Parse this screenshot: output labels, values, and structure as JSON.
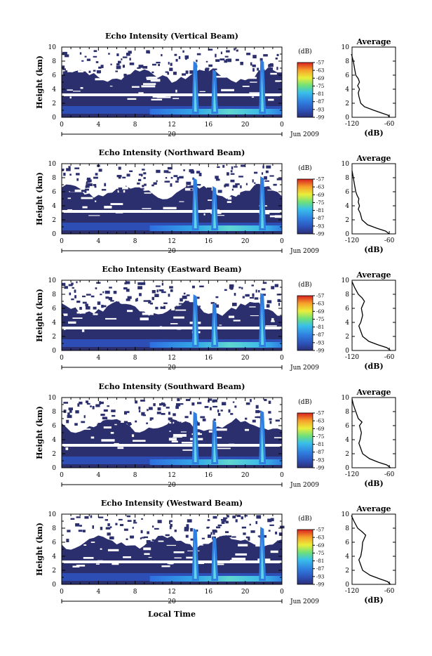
{
  "chart_data": [
    {
      "type": "heatmap",
      "title": "Echo Intensity (Vertical Beam)",
      "ylabel": "Height (km)",
      "xlabel": "",
      "x_ticks": [
        "0",
        "4",
        "8",
        "12",
        "16",
        "20",
        "0"
      ],
      "y_ticks": [
        "0",
        "2",
        "4",
        "6",
        "8",
        "10"
      ],
      "xlim": [
        0,
        24
      ],
      "ylim": [
        0,
        10
      ],
      "date_label": "20",
      "date_suffix": "Jun 2009",
      "colorbar": {
        "unit": "(dB)",
        "ticks": [
          "-57",
          "-63",
          "-69",
          "-75",
          "-81",
          "-87",
          "-93",
          "-99"
        ],
        "range": [
          -99,
          -57
        ]
      },
      "profile": {
        "title": "Average",
        "xlabel": "(dB)",
        "x_ticks": [
          "-120",
          "-60"
        ],
        "y_ticks": [
          "0",
          "2",
          "4",
          "6",
          "8",
          "10"
        ],
        "xlim": [
          -120,
          -50
        ],
        "ylim": [
          0,
          10
        ],
        "points": [
          [
            -60,
            0
          ],
          [
            -62,
            0.3
          ],
          [
            -72,
            0.6
          ],
          [
            -85,
            1.0
          ],
          [
            -100,
            1.5
          ],
          [
            -106,
            2.0
          ],
          [
            -109,
            3.0
          ],
          [
            -110,
            3.5
          ],
          [
            -108,
            4.0
          ],
          [
            -111,
            4.5
          ],
          [
            -108,
            5.0
          ],
          [
            -110,
            5.5
          ],
          [
            -114,
            6.0
          ],
          [
            -116,
            7.0
          ],
          [
            -118,
            8.0
          ],
          [
            -121,
            9.0
          ]
        ]
      }
    },
    {
      "type": "heatmap",
      "title": "Echo Intensity (Northward Beam)",
      "ylabel": "Height (km)",
      "xlabel": "",
      "x_ticks": [
        "0",
        "4",
        "8",
        "12",
        "16",
        "20",
        "0"
      ],
      "y_ticks": [
        "0",
        "2",
        "4",
        "6",
        "8",
        "10"
      ],
      "xlim": [
        0,
        24
      ],
      "ylim": [
        0,
        10
      ],
      "date_label": "20",
      "date_suffix": "Jun 2009",
      "colorbar": {
        "unit": "(dB)",
        "ticks": [
          "-57",
          "-63",
          "-69",
          "-75",
          "-81",
          "-87",
          "-93",
          "-99"
        ],
        "range": [
          -99,
          -57
        ]
      },
      "profile": {
        "title": "Average",
        "xlabel": "(dB)",
        "x_ticks": [
          "-120",
          "-60"
        ],
        "y_ticks": [
          "0",
          "2",
          "4",
          "6",
          "8",
          "10"
        ],
        "xlim": [
          -120,
          -50
        ],
        "ylim": [
          0,
          10
        ],
        "points": [
          [
            -60,
            0
          ],
          [
            -66,
            0.4
          ],
          [
            -80,
            0.8
          ],
          [
            -95,
            1.3
          ],
          [
            -104,
            2.0
          ],
          [
            -107,
            3.0
          ],
          [
            -110,
            3.5
          ],
          [
            -108,
            4.0
          ],
          [
            -110,
            4.5
          ],
          [
            -109,
            5.0
          ],
          [
            -112,
            5.5
          ],
          [
            -114,
            6.0
          ],
          [
            -116,
            7.0
          ],
          [
            -118,
            8.0
          ],
          [
            -120,
            9.0
          ]
        ]
      }
    },
    {
      "type": "heatmap",
      "title": "Echo Intensity (Eastward Beam)",
      "ylabel": "Height (km)",
      "xlabel": "",
      "x_ticks": [
        "0",
        "4",
        "8",
        "12",
        "16",
        "20",
        "0"
      ],
      "y_ticks": [
        "0",
        "2",
        "4",
        "6",
        "8",
        "10"
      ],
      "xlim": [
        0,
        24
      ],
      "ylim": [
        0,
        10
      ],
      "date_label": "20",
      "date_suffix": "Jun 2009",
      "colorbar": {
        "unit": "(dB)",
        "ticks": [
          "-57",
          "-63",
          "-69",
          "-75",
          "-81",
          "-87",
          "-93",
          "-99"
        ],
        "range": [
          -99,
          -57
        ]
      },
      "profile": {
        "title": "Average",
        "xlabel": "(dB)",
        "x_ticks": [
          "-120",
          "-60"
        ],
        "y_ticks": [
          "0",
          "2",
          "4",
          "6",
          "8",
          "10"
        ],
        "xlim": [
          -120,
          -50
        ],
        "ylim": [
          0,
          10
        ],
        "points": [
          [
            -58,
            0
          ],
          [
            -64,
            0.4
          ],
          [
            -78,
            0.8
          ],
          [
            -93,
            1.3
          ],
          [
            -103,
            2.0
          ],
          [
            -107,
            3.0
          ],
          [
            -109,
            3.5
          ],
          [
            -106,
            4.0
          ],
          [
            -103,
            5.0
          ],
          [
            -105,
            6.0
          ],
          [
            -100,
            7.0
          ],
          [
            -104,
            7.5
          ],
          [
            -110,
            8.0
          ],
          [
            -116,
            9.0
          ],
          [
            -120,
            9.8
          ]
        ]
      }
    },
    {
      "type": "heatmap",
      "title": "Echo Intensity (Southward Beam)",
      "ylabel": "Height (km)",
      "xlabel": "",
      "x_ticks": [
        "0",
        "4",
        "8",
        "12",
        "16",
        "20",
        "0"
      ],
      "y_ticks": [
        "0",
        "2",
        "4",
        "6",
        "8",
        "10"
      ],
      "xlim": [
        0,
        24
      ],
      "ylim": [
        0,
        10
      ],
      "date_label": "20",
      "date_suffix": "Jun 2009",
      "colorbar": {
        "unit": "(dB)",
        "ticks": [
          "-57",
          "-63",
          "-69",
          "-75",
          "-81",
          "-87",
          "-93",
          "-99"
        ],
        "range": [
          -99,
          -57
        ]
      },
      "profile": {
        "title": "Average",
        "xlabel": "(dB)",
        "x_ticks": [
          "-120",
          "-60"
        ],
        "y_ticks": [
          "0",
          "2",
          "4",
          "6",
          "8",
          "10"
        ],
        "xlim": [
          -120,
          -50
        ],
        "ylim": [
          0,
          10
        ],
        "points": [
          [
            -58,
            0
          ],
          [
            -64,
            0.4
          ],
          [
            -78,
            0.8
          ],
          [
            -92,
            1.3
          ],
          [
            -103,
            2.0
          ],
          [
            -107,
            3.0
          ],
          [
            -109,
            3.5
          ],
          [
            -107,
            4.0
          ],
          [
            -105,
            5.0
          ],
          [
            -108,
            6.0
          ],
          [
            -104,
            6.5
          ],
          [
            -110,
            7.0
          ],
          [
            -114,
            8.0
          ],
          [
            -118,
            9.0
          ],
          [
            -120,
            9.8
          ]
        ]
      }
    },
    {
      "type": "heatmap",
      "title": "Echo Intensity (Westward Beam)",
      "ylabel": "Height (km)",
      "xlabel": "Local Time",
      "x_ticks": [
        "0",
        "4",
        "8",
        "12",
        "16",
        "20",
        "0"
      ],
      "y_ticks": [
        "0",
        "2",
        "4",
        "6",
        "8",
        "10"
      ],
      "xlim": [
        0,
        24
      ],
      "ylim": [
        0,
        10
      ],
      "date_label": "20",
      "date_suffix": "Jun 2009",
      "colorbar": {
        "unit": "(dB)",
        "ticks": [
          "-57",
          "-63",
          "-69",
          "-75",
          "-81",
          "-87",
          "-93",
          "-99"
        ],
        "range": [
          -99,
          -57
        ]
      },
      "profile": {
        "title": "Average",
        "xlabel": "(dB)",
        "x_ticks": [
          "-120",
          "-60"
        ],
        "y_ticks": [
          "0",
          "2",
          "4",
          "6",
          "8",
          "10"
        ],
        "xlim": [
          -120,
          -50
        ],
        "ylim": [
          0,
          10
        ],
        "points": [
          [
            -58,
            0
          ],
          [
            -63,
            0.4
          ],
          [
            -76,
            0.8
          ],
          [
            -91,
            1.3
          ],
          [
            -103,
            2.0
          ],
          [
            -107,
            3.0
          ],
          [
            -109,
            3.5
          ],
          [
            -106,
            4.0
          ],
          [
            -104,
            5.0
          ],
          [
            -103,
            6.0
          ],
          [
            -98,
            7.0
          ],
          [
            -104,
            7.5
          ],
          [
            -111,
            8.0
          ],
          [
            -117,
            9.0
          ],
          [
            -121,
            9.8
          ]
        ]
      }
    }
  ]
}
